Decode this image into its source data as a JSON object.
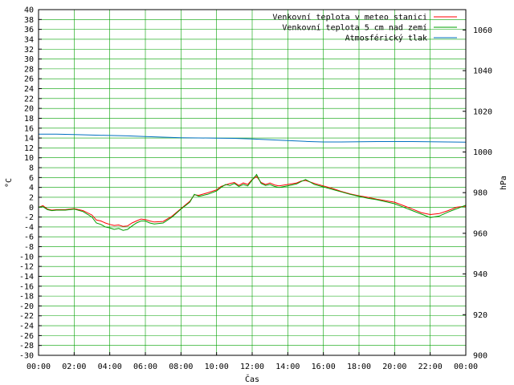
{
  "chart_data": {
    "type": "line",
    "xlabel": "Čas",
    "ylabel": "°C",
    "y2label": "hPa",
    "xlim": [
      0,
      24
    ],
    "ylim": [
      -30,
      40
    ],
    "y2lim": [
      900,
      1070
    ],
    "x_tick_labels": [
      "00:00",
      "02:00",
      "04:00",
      "06:00",
      "08:00",
      "10:00",
      "12:00",
      "14:00",
      "16:00",
      "18:00",
      "20:00",
      "22:00",
      "00:00"
    ],
    "y_ticks": [
      -30,
      -28,
      -26,
      -24,
      -22,
      -20,
      -18,
      -16,
      -14,
      -12,
      -10,
      -8,
      -6,
      -4,
      -2,
      0,
      2,
      4,
      6,
      8,
      10,
      12,
      14,
      16,
      18,
      20,
      22,
      24,
      26,
      28,
      30,
      32,
      34,
      36,
      38,
      40
    ],
    "y2_ticks": [
      900,
      920,
      940,
      960,
      980,
      1000,
      1020,
      1040,
      1060
    ],
    "grid": true,
    "legend_position": "top-right",
    "series": [
      {
        "name": "Venkovní teplota v meteo stanici",
        "axis": "left",
        "color": "#ff0000",
        "x": [
          0,
          0.25,
          0.5,
          0.75,
          1,
          1.5,
          2,
          2.5,
          3,
          3.25,
          3.5,
          3.75,
          4,
          4.25,
          4.5,
          4.75,
          5,
          5.25,
          5.5,
          5.75,
          6,
          6.25,
          6.5,
          7,
          7.5,
          8,
          8.5,
          8.75,
          9,
          9.5,
          10,
          10.25,
          10.5,
          10.75,
          11,
          11.25,
          11.5,
          11.75,
          12,
          12.25,
          12.5,
          12.75,
          13,
          13.25,
          13.5,
          14,
          14.5,
          14.75,
          15,
          15.5,
          16,
          16.5,
          17,
          17.5,
          18,
          18.5,
          19,
          19.5,
          20,
          20.5,
          21,
          21.5,
          22,
          22.5,
          23,
          23.5,
          24
        ],
        "y": [
          0,
          0.3,
          -0.4,
          -0.6,
          -0.5,
          -0.5,
          -0.3,
          -0.7,
          -1.6,
          -2.6,
          -2.8,
          -3.2,
          -3.5,
          -3.7,
          -3.6,
          -3.9,
          -3.8,
          -3.2,
          -2.8,
          -2.4,
          -2.5,
          -2.8,
          -3.0,
          -2.9,
          -1.8,
          -0.3,
          1.2,
          2.5,
          2.4,
          2.9,
          3.5,
          4.2,
          4.5,
          4.8,
          5.0,
          4.4,
          4.9,
          4.6,
          5.6,
          6.2,
          5.0,
          4.6,
          4.9,
          4.5,
          4.3,
          4.6,
          4.9,
          5.3,
          5.4,
          4.8,
          4.3,
          3.8,
          3.2,
          2.7,
          2.3,
          2.0,
          1.6,
          1.3,
          1.0,
          0.3,
          -0.4,
          -1.1,
          -1.5,
          -1.3,
          -0.7,
          0.0,
          0.2
        ]
      },
      {
        "name": "Venkovní teplota 5 cm nad zemí",
        "axis": "left",
        "color": "#00a000",
        "x": [
          0,
          0.25,
          0.5,
          0.75,
          1,
          1.5,
          2,
          2.5,
          3,
          3.25,
          3.5,
          3.75,
          4,
          4.25,
          4.5,
          4.75,
          5,
          5.25,
          5.5,
          5.75,
          6,
          6.25,
          6.5,
          7,
          7.5,
          8,
          8.5,
          8.75,
          9,
          9.5,
          10,
          10.25,
          10.5,
          10.75,
          11,
          11.25,
          11.5,
          11.75,
          12,
          12.25,
          12.5,
          12.75,
          13,
          13.25,
          13.5,
          14,
          14.5,
          14.75,
          15,
          15.5,
          16,
          16.5,
          17,
          17.5,
          18,
          18.5,
          19,
          19.5,
          20,
          20.5,
          21,
          21.5,
          22,
          22.5,
          23,
          23.5,
          24
        ],
        "y": [
          0,
          0.1,
          -0.5,
          -0.7,
          -0.6,
          -0.6,
          -0.4,
          -0.9,
          -2.0,
          -3.2,
          -3.5,
          -4.0,
          -4.2,
          -4.5,
          -4.3,
          -4.7,
          -4.5,
          -3.8,
          -3.2,
          -2.8,
          -2.8,
          -3.2,
          -3.4,
          -3.2,
          -2.0,
          -0.4,
          1.0,
          2.6,
          2.2,
          2.6,
          3.3,
          4.0,
          4.6,
          4.4,
          4.8,
          4.2,
          4.6,
          4.3,
          5.5,
          6.6,
          4.8,
          4.4,
          4.6,
          4.2,
          4.0,
          4.3,
          4.7,
          5.2,
          5.6,
          4.6,
          4.1,
          3.6,
          3.1,
          2.6,
          2.2,
          1.8,
          1.5,
          1.1,
          0.7,
          0.0,
          -0.7,
          -1.4,
          -2.1,
          -1.8,
          -1.0,
          -0.3,
          0.4
        ]
      },
      {
        "name": "Atmosférický tlak",
        "axis": "right",
        "color": "#0070c0",
        "x": [
          0,
          1,
          2,
          3,
          4,
          5,
          6,
          7,
          8,
          9,
          10,
          11,
          12,
          13,
          14,
          15,
          16,
          17,
          18,
          19,
          20,
          21,
          22,
          23,
          24
        ],
        "y": [
          1008.8,
          1008.8,
          1008.6,
          1008.3,
          1008.1,
          1007.9,
          1007.6,
          1007.3,
          1007.0,
          1006.9,
          1006.8,
          1006.7,
          1006.4,
          1006.0,
          1005.6,
          1005.2,
          1004.9,
          1004.9,
          1005.0,
          1005.1,
          1005.1,
          1005.1,
          1005.0,
          1004.9,
          1004.8
        ]
      }
    ]
  }
}
